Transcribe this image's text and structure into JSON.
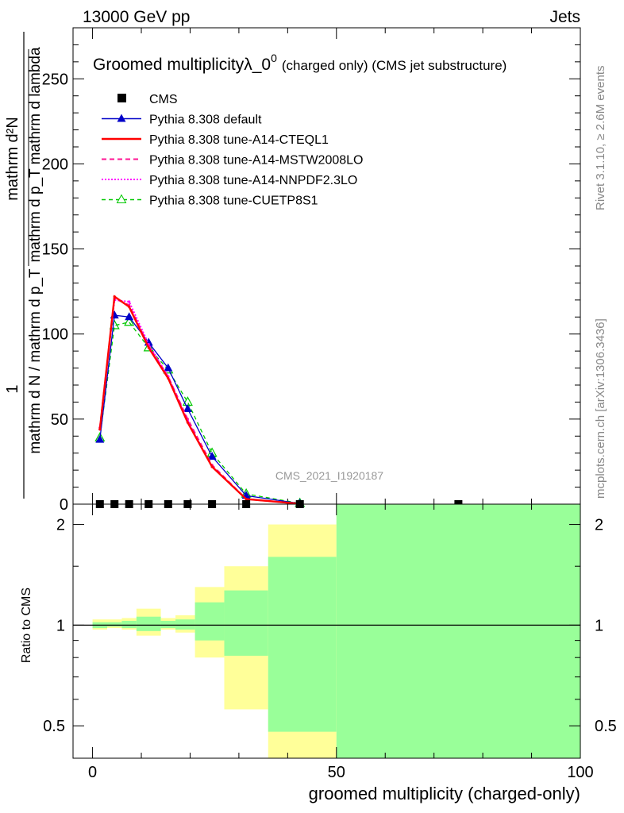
{
  "header": {
    "left": "13000 GeV pp",
    "right": "Jets"
  },
  "side_labels": {
    "rivet": "Rivet 3.1.10, ≥ 2.6M events",
    "site": "mcplots.cern.ch [arXiv:1306.3436]"
  },
  "watermark": "CMS_2021_I1920187",
  "colors": {
    "cms": "#000000",
    "default": "#0000c8",
    "cteql1": "#ff0000",
    "mstw": "#ff1493",
    "nnpdf": "#ff00ff",
    "cuetp": "#00c800",
    "band_outer": "#ffff99",
    "band_inner": "#99ff99"
  },
  "chart_data": [
    {
      "type": "line",
      "title": "Groomed multiplicityλ_0⁰",
      "title_main": "Groomed multiplicityλ_0",
      "title_sup": "0",
      "title_suffix": "(charged only) (CMS jet substructure)",
      "ylabel_numer": "1",
      "ylabel_numer_frac": "mathrm d²N",
      "ylabel_numer_frac_den": "mathrm d p_T mathrm d lambda",
      "ylabel_denom": "mathrm d N / mathrm d p_T",
      "ylim": [
        0,
        280
      ],
      "xlim": [
        -4,
        100
      ],
      "yticks": [
        0,
        50,
        100,
        150,
        200,
        250
      ],
      "grid": false,
      "legend_position": "top-left",
      "legend": [
        "CMS",
        "Pythia 8.308 default",
        "Pythia 8.308 tune-A14-CTEQL1",
        "Pythia 8.308 tune-A14-MSTW2008LO",
        "Pythia 8.308 tune-A14-NNPDF2.3LO",
        "Pythia 8.308 tune-CUETP8S1"
      ],
      "series": [
        {
          "name": "CMS",
          "style": "marker",
          "x": [
            1.5,
            4.5,
            7.5,
            11.5,
            15.5,
            19.5,
            24.5,
            31.5,
            42.5,
            75
          ],
          "y": [
            0,
            0,
            0,
            0,
            0,
            0,
            0,
            0,
            0,
            0
          ]
        },
        {
          "name": "Pythia 8.308 default",
          "x": [
            1.5,
            4.5,
            7.5,
            11.5,
            15.5,
            19.5,
            24.5,
            31.5,
            42.5
          ],
          "y": [
            38,
            111,
            110,
            95,
            80,
            56,
            28,
            5,
            0.4
          ]
        },
        {
          "name": "Pythia 8.308 tune-A14-CTEQL1",
          "x": [
            1.5,
            4.5,
            7.5,
            11.5,
            15.5,
            19.5,
            24.5,
            31.5,
            42.5
          ],
          "y": [
            44,
            122,
            116,
            92,
            74,
            48,
            22,
            3,
            0.2
          ]
        },
        {
          "name": "Pythia 8.308 tune-A14-MSTW2008LO",
          "x": [
            1.5,
            4.5,
            7.5,
            11.5,
            15.5,
            19.5,
            24.5,
            31.5,
            42.5
          ],
          "y": [
            45,
            121,
            117,
            93,
            75,
            50,
            23,
            3,
            0.2
          ]
        },
        {
          "name": "Pythia 8.308 tune-A14-NNPDF2.3LO",
          "x": [
            1.5,
            4.5,
            7.5,
            11.5,
            15.5,
            19.5,
            24.5,
            31.5,
            42.5
          ],
          "y": [
            44,
            120,
            119,
            94,
            75,
            49,
            22,
            3,
            0.2
          ]
        },
        {
          "name": "Pythia 8.308 tune-CUETP8S1",
          "x": [
            1.5,
            4.5,
            7.5,
            11.5,
            15.5,
            19.5,
            24.5,
            31.5,
            42.5
          ],
          "y": [
            39,
            105,
            107,
            92,
            79,
            60,
            30,
            6,
            0.5
          ]
        }
      ]
    },
    {
      "type": "area",
      "xlabel": "groomed multiplicity (charged-only)",
      "ylabel": "Ratio to CMS",
      "ylog": true,
      "ylim": [
        0.4,
        2.3
      ],
      "xlim": [
        -4,
        100
      ],
      "xticks": [
        0,
        50,
        100
      ],
      "yticks": [
        0.5,
        1,
        2
      ],
      "reference": 1,
      "bands": [
        {
          "x": [
            0,
            3
          ],
          "inner": [
            0.98,
            1.02
          ],
          "outer": [
            0.97,
            1.04
          ]
        },
        {
          "x": [
            3,
            6
          ],
          "inner": [
            0.99,
            1.02
          ],
          "outer": [
            0.98,
            1.04
          ]
        },
        {
          "x": [
            6,
            9
          ],
          "inner": [
            0.98,
            1.03
          ],
          "outer": [
            0.97,
            1.05
          ]
        },
        {
          "x": [
            9,
            14
          ],
          "inner": [
            0.96,
            1.06
          ],
          "outer": [
            0.93,
            1.12
          ]
        },
        {
          "x": [
            14,
            17
          ],
          "inner": [
            0.98,
            1.03
          ],
          "outer": [
            0.97,
            1.05
          ]
        },
        {
          "x": [
            17,
            21
          ],
          "inner": [
            0.97,
            1.04
          ],
          "outer": [
            0.95,
            1.07
          ]
        },
        {
          "x": [
            21,
            27
          ],
          "inner": [
            0.9,
            1.17
          ],
          "outer": [
            0.8,
            1.3
          ]
        },
        {
          "x": [
            27,
            36
          ],
          "inner": [
            0.81,
            1.27
          ],
          "outer": [
            0.56,
            1.5
          ]
        },
        {
          "x": [
            36,
            50
          ],
          "inner": [
            0.48,
            1.6
          ],
          "outer": [
            0.35,
            2.0
          ]
        },
        {
          "x": [
            50,
            100
          ],
          "inner": [
            0.3,
            2.5
          ],
          "outer": [
            0.3,
            2.5
          ]
        }
      ]
    }
  ]
}
